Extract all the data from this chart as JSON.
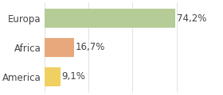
{
  "categories": [
    "Europa",
    "Africa",
    "America"
  ],
  "values": [
    74.2,
    16.7,
    9.1
  ],
  "labels": [
    "74,2%",
    "16,7%",
    "9,1%"
  ],
  "bar_colors": [
    "#b5cc96",
    "#e8a87c",
    "#f0d060"
  ],
  "background_color": "#ffffff",
  "xlim": [
    0,
    100
  ],
  "label_fontsize": 8.5,
  "tick_fontsize": 8.5,
  "bar_height": 0.65,
  "figsize": [
    2.8,
    1.2
  ],
  "dpi": 100
}
